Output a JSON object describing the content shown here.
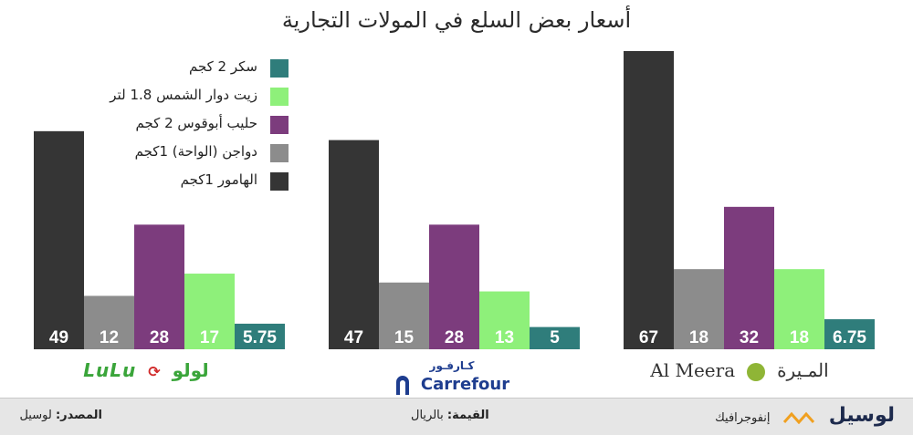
{
  "chart_data": {
    "type": "bar",
    "title": "أسعار بعض السلع في المولات التجارية",
    "categories": [
      "لولو",
      "كارفور",
      "الميرة"
    ],
    "series": [
      {
        "name": "الهامور 1كجم",
        "color": "#353535",
        "values": [
          49,
          47,
          67
        ]
      },
      {
        "name": "دواجن (الواحة) 1كجم",
        "color": "#8c8c8c",
        "values": [
          12,
          15,
          18
        ]
      },
      {
        "name": "حليب أبوقوس 2 كجم",
        "color": "#7c3c7d",
        "values": [
          28,
          28,
          32
        ]
      },
      {
        "name": "زيت دوار الشمس 1.8 لتر",
        "color": "#8ef07a",
        "values": [
          17,
          13,
          18
        ]
      },
      {
        "name": "سكر 2 كجم",
        "color": "#2f7d7b",
        "values": [
          5.75,
          5,
          6.75
        ]
      }
    ],
    "value_labels": [
      [
        "49",
        "12",
        "28",
        "17",
        "5.75"
      ],
      [
        "47",
        "15",
        "28",
        "13",
        "5"
      ],
      [
        "67",
        "18",
        "32",
        "18",
        "6.75"
      ]
    ],
    "ylim": [
      0,
      67
    ],
    "legend_position": "top-left",
    "grid": false
  },
  "legend_order": [
    4,
    3,
    2,
    1,
    0
  ],
  "stores": {
    "lulu": {
      "en": "LuLu",
      "ar": "لولو"
    },
    "carrefour": {
      "ar": "كـارفـور",
      "en": "Carrefour"
    },
    "almeera": {
      "en": "Al Meera",
      "ar": "المـيرة"
    }
  },
  "footer": {
    "source_label": "المصدر:",
    "source_value": "لوسيل",
    "unit_label": "القيمة:",
    "unit_value": "بالريال",
    "brand_name": "لوسيل",
    "brand_sub": "إنفوجرافيك"
  }
}
